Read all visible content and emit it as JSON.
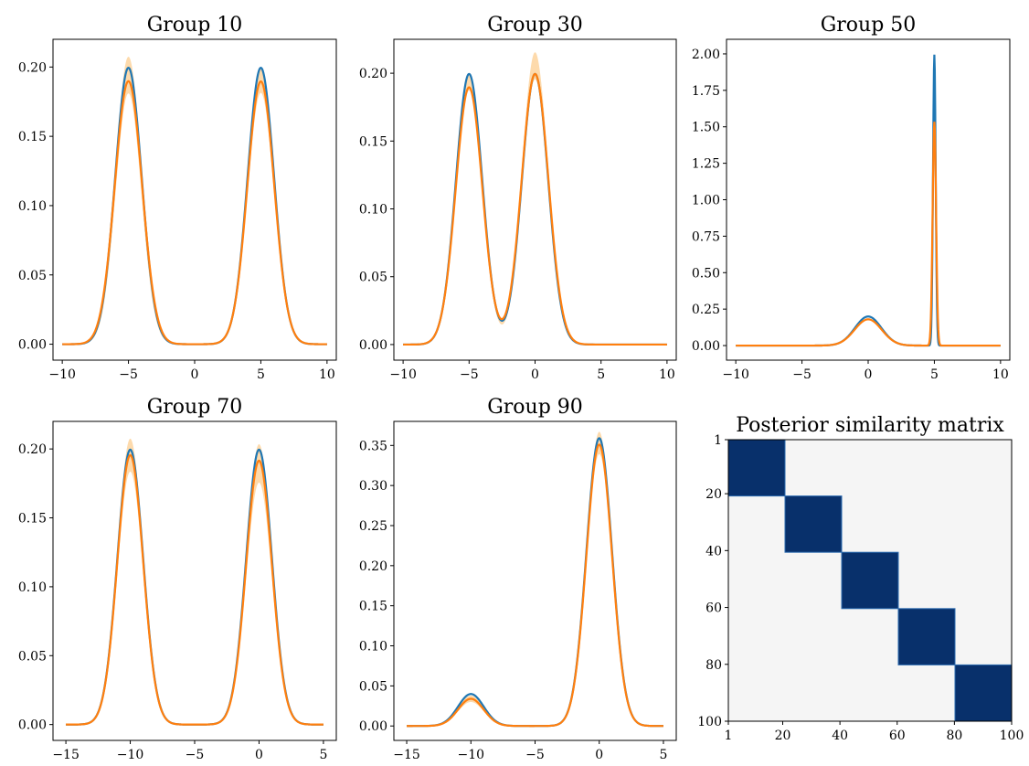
{
  "chart_data": [
    {
      "type": "line",
      "title": "Group 10",
      "xlim": [
        -10.7,
        10.7
      ],
      "ylim": [
        -0.0115,
        0.22
      ],
      "xticks": [
        -10,
        -5,
        0,
        5,
        10
      ],
      "yticks": [
        0.0,
        0.05,
        0.1,
        0.15,
        0.2
      ],
      "xtick_labels": [
        "−10",
        "−5",
        "0",
        "5",
        "10"
      ],
      "ytick_labels": [
        "0.00",
        "0.05",
        "0.10",
        "0.15",
        "0.20"
      ],
      "x_range": [
        -10,
        10
      ],
      "series": [
        {
          "color": "#1f77b4",
          "components": [
            [
              0.5,
              -5,
              1.0
            ],
            [
              0.5,
              5,
              1.0
            ]
          ]
        },
        {
          "color": "#ff7f0e",
          "components": [
            [
              0.49,
              -5,
              1.03
            ],
            [
              0.48,
              5,
              1.01
            ]
          ]
        }
      ],
      "band": {
        "color": "#fdd49e",
        "components_low": [
          [
            0.44,
            -5,
            0.97
          ],
          [
            0.45,
            5,
            0.99
          ]
        ],
        "components_high": [
          [
            0.52,
            -5,
            1.0
          ],
          [
            0.5,
            5,
            1.0
          ]
        ]
      }
    },
    {
      "type": "line",
      "title": "Group 30",
      "xlim": [
        -10.7,
        10.7
      ],
      "ylim": [
        -0.0115,
        0.225
      ],
      "xticks": [
        -10,
        -5,
        0,
        5,
        10
      ],
      "yticks": [
        0.0,
        0.05,
        0.1,
        0.15,
        0.2
      ],
      "xtick_labels": [
        "−10",
        "−5",
        "0",
        "5",
        "10"
      ],
      "ytick_labels": [
        "0.00",
        "0.05",
        "0.10",
        "0.15",
        "0.20"
      ],
      "x_range": [
        -10,
        10
      ],
      "series": [
        {
          "color": "#1f77b4",
          "components": [
            [
              0.5,
              -5,
              1.0
            ],
            [
              0.5,
              0,
              1.0
            ]
          ]
        },
        {
          "color": "#ff7f0e",
          "components": [
            [
              0.48,
              -5,
              1.01
            ],
            [
              0.51,
              0,
              1.02
            ]
          ]
        }
      ],
      "band": {
        "color": "#fdd49e",
        "components_low": [
          [
            0.46,
            -5,
            0.98
          ],
          [
            0.48,
            0,
            0.98
          ]
        ],
        "components_high": [
          [
            0.5,
            -5,
            1.0
          ],
          [
            0.54,
            0,
            1.0
          ]
        ]
      }
    },
    {
      "type": "line",
      "title": "Group 50",
      "xlim": [
        -10.7,
        10.7
      ],
      "ylim": [
        -0.1,
        2.1
      ],
      "xticks": [
        -10,
        -5,
        0,
        5,
        10
      ],
      "yticks": [
        0.0,
        0.25,
        0.5,
        0.75,
        1.0,
        1.25,
        1.5,
        1.75,
        2.0
      ],
      "xtick_labels": [
        "−10",
        "−5",
        "0",
        "5",
        "10"
      ],
      "ytick_labels": [
        "0.00",
        "0.25",
        "0.50",
        "0.75",
        "1.00",
        "1.25",
        "1.50",
        "1.75",
        "2.00"
      ],
      "x_range": [
        -10,
        10
      ],
      "series": [
        {
          "color": "#1f77b4",
          "components": [
            [
              0.5,
              0,
              1.0
            ],
            [
              0.5,
              5,
              0.1
            ]
          ]
        },
        {
          "color": "#ff7f0e",
          "components": [
            [
              0.46,
              0,
              1.02
            ],
            [
              0.5,
              5,
              0.13
            ]
          ]
        }
      ],
      "band": null
    },
    {
      "type": "line",
      "title": "Group 70",
      "xlim": [
        -16.0,
        6.0
      ],
      "ylim": [
        -0.0115,
        0.22
      ],
      "xticks": [
        -15,
        -10,
        -5,
        0,
        5
      ],
      "yticks": [
        0.0,
        0.05,
        0.1,
        0.15,
        0.2
      ],
      "xtick_labels": [
        "−15",
        "−10",
        "−5",
        "0",
        "5"
      ],
      "ytick_labels": [
        "0.00",
        "0.05",
        "0.10",
        "0.15",
        "0.20"
      ],
      "x_range": [
        -15,
        5
      ],
      "series": [
        {
          "color": "#1f77b4",
          "components": [
            [
              0.5,
              -10,
              1.0
            ],
            [
              0.5,
              0,
              1.0
            ]
          ]
        },
        {
          "color": "#ff7f0e",
          "components": [
            [
              0.49,
              -10,
              1.0
            ],
            [
              0.48,
              0,
              1.0
            ]
          ]
        }
      ],
      "band": {
        "color": "#fdd49e",
        "components_low": [
          [
            0.46,
            -10,
            1.0
          ],
          [
            0.44,
            0,
            1.0
          ]
        ],
        "components_high": [
          [
            0.52,
            -10,
            1.0
          ],
          [
            0.51,
            0,
            1.0
          ]
        ]
      }
    },
    {
      "type": "line",
      "title": "Group 90",
      "xlim": [
        -16.0,
        6.0
      ],
      "ylim": [
        -0.018,
        0.38
      ],
      "xticks": [
        -15,
        -10,
        -5,
        0,
        5
      ],
      "yticks": [
        0.0,
        0.05,
        0.1,
        0.15,
        0.2,
        0.25,
        0.3,
        0.35
      ],
      "xtick_labels": [
        "−15",
        "−10",
        "−5",
        "0",
        "5"
      ],
      "ytick_labels": [
        "0.00",
        "0.05",
        "0.10",
        "0.15",
        "0.20",
        "0.25",
        "0.30",
        "0.35"
      ],
      "x_range": [
        -15,
        5
      ],
      "series": [
        {
          "color": "#1f77b4",
          "components": [
            [
              0.1,
              -10,
              1.0
            ],
            [
              0.9,
              0,
              1.0
            ]
          ]
        },
        {
          "color": "#ff7f0e",
          "components": [
            [
              0.085,
              -10,
              1.0
            ],
            [
              0.88,
              0,
              1.0
            ]
          ]
        }
      ],
      "band": {
        "color": "#fdd49e",
        "components_low": [
          [
            0.075,
            -10,
            1.0
          ],
          [
            0.85,
            0,
            1.0
          ]
        ],
        "components_high": [
          [
            0.095,
            -10,
            1.0
          ],
          [
            0.92,
            0,
            1.0
          ]
        ]
      }
    },
    {
      "type": "heatmap",
      "title": "Posterior similarity matrix",
      "size": 100,
      "blocks": [
        [
          1,
          20
        ],
        [
          21,
          40
        ],
        [
          41,
          60
        ],
        [
          61,
          80
        ],
        [
          81,
          100
        ]
      ],
      "in_block_color": "#08306b",
      "out_block_color": "#f5f5f5",
      "xtick_labels": [
        "1",
        "20",
        "40",
        "60",
        "80",
        "100"
      ],
      "ytick_labels": [
        "1",
        "20",
        "40",
        "60",
        "80",
        "100"
      ],
      "tick_positions": [
        1,
        20,
        40,
        60,
        80,
        100
      ]
    }
  ]
}
